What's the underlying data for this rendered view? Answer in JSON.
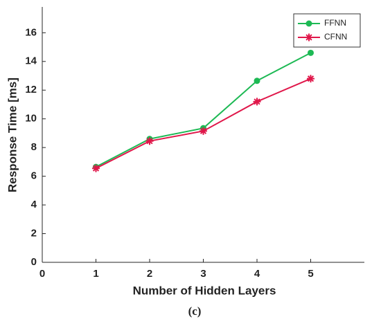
{
  "chart_data": {
    "type": "line",
    "x_label": "Number of Hidden Layers",
    "y_label": "Response Time [ms]",
    "caption": "(c)",
    "x": [
      1,
      2,
      3,
      4,
      5
    ],
    "series": [
      {
        "name": "FFNN",
        "color": "#1db954",
        "marker": "circle",
        "values": [
          6.65,
          8.6,
          9.35,
          12.65,
          14.6
        ]
      },
      {
        "name": "CFNN",
        "color": "#e0174a",
        "marker": "asterisk",
        "values": [
          6.55,
          8.45,
          9.15,
          11.2,
          12.8
        ]
      }
    ],
    "xlim": [
      0,
      6
    ],
    "xticks": [
      0,
      1,
      2,
      3,
      4,
      5
    ],
    "ylim": [
      0,
      17.8
    ],
    "yticks": [
      0,
      2,
      4,
      6,
      8,
      10,
      12,
      14,
      16
    ],
    "legend": "upper-right"
  }
}
